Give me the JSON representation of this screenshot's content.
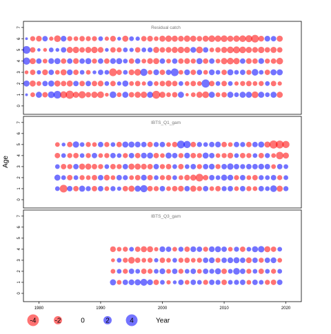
{
  "chart_data": {
    "type": "scatter",
    "subtype": "bubble-residuals",
    "ylabel": "Age",
    "xlabel": "Year",
    "x_ticks": [
      1980,
      1990,
      2000,
      2010,
      2020
    ],
    "xlim": [
      1977.5,
      2022.5
    ],
    "ylim": [
      -0.5,
      7.3
    ],
    "y_ticks": [
      0,
      1,
      2,
      3,
      4,
      5,
      6,
      7
    ],
    "colors": {
      "positive": "#0000ff",
      "negative": "#ff0000",
      "alpha": 0.55
    },
    "legend": {
      "placement": "bottom-left",
      "values": [
        -4,
        -2,
        0,
        2,
        4
      ],
      "labels": [
        "-4",
        "-2",
        "0",
        "2",
        "4"
      ],
      "title": "Year"
    },
    "panels": [
      {
        "title": "Residual catch",
        "years": [
          1978,
          2019
        ],
        "ages": [
          1,
          2,
          3,
          4,
          5,
          6
        ],
        "residuals": {
          "1": [
            0.2,
            -0.6,
            1.0,
            -0.8,
            1.2,
            1.6,
            -1.3,
            -1.8,
            -1.0,
            -1.4,
            -0.8,
            -1.1,
            -1.2,
            -0.4,
            1.2,
            -0.6,
            1.0,
            -0.8,
            -1.0,
            -1.1,
            1.0,
            -1.7,
            -1.0,
            -0.6,
            -0.8,
            1.0,
            -0.3,
            -0.6,
            -1.0,
            -1.2,
            1.0,
            -0.6,
            -0.8,
            1.0,
            0.6,
            1.0,
            1.0,
            -1.2,
            1.0,
            0.6,
            1.0,
            -1.0
          ],
          "2": [
            1.0,
            -1.0,
            -0.6,
            0.8,
            1.0,
            -1.0,
            -0.8,
            -1.0,
            0.8,
            -0.8,
            0.8,
            -0.8,
            -0.9,
            0.6,
            -0.8,
            0.5,
            1.0,
            -0.6,
            -0.8,
            -0.5,
            0.8,
            -0.6,
            -0.8,
            -1.0,
            -0.8,
            0.6,
            -0.6,
            -0.8,
            -0.6,
            1.8,
            -0.8,
            0.6,
            -0.8,
            0.6,
            -0.5,
            -0.7,
            -0.8,
            -0.6,
            -0.7,
            0.6,
            -0.8,
            -0.5
          ],
          "3": [
            -0.4,
            -0.8,
            0.5,
            -0.9,
            0.8,
            -0.6,
            -1.0,
            0.9,
            -0.8,
            0.6,
            -0.6,
            0.4,
            0.8,
            0.6,
            -1.6,
            -0.8,
            0.6,
            -0.9,
            -1.2,
            1.4,
            -0.6,
            0.9,
            -0.8,
            0.8,
            1.6,
            -0.6,
            0.9,
            -0.8,
            0.8,
            -0.6,
            0.9,
            0.6,
            -0.8,
            1.0,
            0.6,
            0.8,
            -0.7,
            1.2,
            0.6,
            -0.8,
            1.0,
            1.0
          ],
          "4": [
            1.4,
            -1.0,
            0.8,
            -0.6,
            0.9,
            1.0,
            -0.8,
            0.8,
            -0.9,
            0.8,
            1.0,
            -0.7,
            0.8,
            -0.8,
            0.9,
            1.0,
            0.6,
            -0.8,
            0.8,
            -0.6,
            -0.9,
            -1.0,
            0.8,
            -0.6,
            0.8,
            -0.8,
            -0.9,
            -0.7,
            1.0,
            -0.8,
            0.8,
            -0.6,
            -1.1,
            -1.2,
            -1.1,
            0.8,
            -0.9,
            -0.8,
            0.9,
            -0.7,
            -0.8,
            -1.2
          ],
          "5": [
            1.6,
            -0.8,
            0.3,
            -0.4,
            0.6,
            0.4,
            0.8,
            -1.0,
            -1.1,
            -0.8,
            -1.0,
            -1.1,
            -0.9,
            0.4,
            -0.8,
            -0.7,
            0.6,
            0.5,
            -0.8,
            0.6,
            0.7,
            -1.0,
            -0.8,
            -0.9,
            -1.0,
            -1.1,
            -1.0,
            0.9,
            -1.2,
            0.8,
            -0.6,
            -0.8,
            -1.0,
            -1.2,
            -1.3,
            -1.2,
            -1.0,
            -0.9,
            -1.1,
            -0.8,
            -1.0,
            -0.8
          ],
          "6": [
            0.2,
            -0.7,
            -0.9,
            0.8,
            -0.5,
            -1.2,
            0.9,
            -0.7,
            -0.6,
            -0.8,
            -0.7,
            -0.7,
            0.6,
            -0.5,
            -0.9,
            0.4,
            -1.0,
            0.6,
            0.5,
            -0.8,
            -0.9,
            -0.6,
            -1.0,
            -1.1,
            -1.0,
            -0.9,
            -1.1,
            -1.0,
            -0.8,
            -1.0,
            -1.2,
            -1.1,
            -1.2,
            -1.0,
            -1.1,
            -1.2,
            -1.3,
            -1.6,
            -0.9,
            0.9,
            0.8,
            -1.0
          ]
        }
      },
      {
        "title": "IBTS_Q1_gam",
        "years": [
          1983,
          2020
        ],
        "ages": [
          1,
          2,
          3,
          4,
          5
        ],
        "residuals": {
          "1": [
            0.6,
            -1.6,
            0.8,
            -0.8,
            1.0,
            0.7,
            -0.8,
            0.8,
            -0.6,
            0.7,
            0.5,
            -0.8,
            -1.0,
            1.0,
            1.4,
            -0.8,
            -0.7,
            0.8,
            -0.6,
            -0.8,
            -0.9,
            0.8,
            -1.0,
            -0.7,
            0.8,
            -0.6,
            -0.8,
            0.7,
            0.8,
            -0.6,
            0.8,
            -0.7,
            -0.6,
            0.8,
            0.6,
            1.2,
            -1.0,
            0.7
          ],
          "2": [
            1.0,
            0.6,
            -0.8,
            0.6,
            -0.7,
            -0.6,
            -0.8,
            0.8,
            -0.9,
            -0.6,
            0.8,
            0.7,
            -0.6,
            -0.8,
            0.9,
            -0.8,
            0.6,
            -0.7,
            -0.8,
            0.6,
            -0.6,
            -0.9,
            -1.0,
            -1.6,
            -0.8,
            0.8,
            0.6,
            1.0,
            0.9,
            -0.7,
            0.8,
            -0.6,
            -0.8,
            0.7,
            0.6,
            0.8,
            -0.7,
            0.6
          ],
          "3": [
            0.6,
            -0.8,
            -0.7,
            0.8,
            -1.0,
            -1.0,
            -0.8,
            -0.7,
            0.6,
            -0.8,
            -0.7,
            0.8,
            -1.0,
            -1.0,
            -0.9,
            -0.8,
            0.8,
            -0.7,
            -0.8,
            0.6,
            -0.8,
            0.6,
            0.8,
            -0.7,
            0.8,
            0.9,
            -0.7,
            0.8,
            1.1,
            0.8,
            0.7,
            0.8,
            0.8,
            0.9,
            0.8,
            -0.6,
            0.8,
            0.6
          ],
          "4": [
            -0.8,
            0.6,
            -0.7,
            -0.8,
            0.6,
            -0.7,
            0.8,
            -0.6,
            -0.7,
            0.8,
            0.6,
            -0.7,
            0.8,
            -0.8,
            0.9,
            1.0,
            -0.8,
            -0.6,
            1.0,
            0.8,
            -0.7,
            0.9,
            -0.8,
            -0.7,
            1.0,
            0.8,
            -0.6,
            -0.7,
            -0.9,
            0.6,
            -0.8,
            -0.7,
            0.6,
            -0.8,
            0.7,
            -0.6,
            -1.5,
            -1.0
          ],
          "5": [
            -0.6,
            0.4,
            -0.8,
            1.1,
            0.6,
            -0.7,
            -0.6,
            0.8,
            -0.7,
            0.6,
            -0.8,
            1.0,
            1.0,
            0.9,
            0.8,
            -0.8,
            0.7,
            0.8,
            -0.6,
            -0.8,
            1.6,
            1.4,
            -0.8,
            0.7,
            0.6,
            0.8,
            0.9,
            -0.8,
            -0.6,
            0.8,
            0.7,
            -0.8,
            0.8,
            1.0,
            -1.0,
            -1.8,
            -1.7,
            -1.4
          ]
        }
      },
      {
        "title": "IBTS_Q3_gam",
        "years": [
          1992,
          2019
        ],
        "ages": [
          1,
          2,
          3,
          4
        ],
        "residuals": {
          "1": [
            1.0,
            -0.6,
            0.8,
            0.9,
            1.0,
            1.3,
            0.9,
            -0.8,
            0.6,
            -0.5,
            0.4,
            0.8,
            -0.6,
            0.8,
            0.6,
            -0.7,
            0.8,
            0.7,
            -0.8,
            0.6,
            0.7,
            0.8,
            -0.6,
            0.8,
            0.6,
            -0.7,
            -0.8,
            0.8
          ],
          "2": [
            -0.6,
            0.6,
            -0.7,
            0.8,
            0.6,
            -0.8,
            -0.7,
            0.6,
            0.9,
            -0.6,
            0.8,
            -0.7,
            0.6,
            0.8,
            -0.6,
            0.8,
            0.7,
            1.0,
            -0.8,
            0.6,
            1.2,
            0.8,
            -0.7,
            0.6,
            -0.8,
            0.6,
            -0.7,
            0.6
          ],
          "3": [
            -0.4,
            0.6,
            -0.7,
            -1.2,
            -0.8,
            -0.6,
            -0.7,
            0.5,
            -0.8,
            -0.6,
            0.6,
            -0.7,
            -0.8,
            -0.6,
            -0.7,
            0.8,
            0.9,
            -0.7,
            0.8,
            0.9,
            1.0,
            0.8,
            -0.9,
            0.8,
            -0.7,
            0.8,
            0.9,
            -0.6
          ],
          "4": [
            -0.9,
            -0.6,
            -0.7,
            0.6,
            -0.8,
            -1.0,
            -1.0,
            -0.5,
            0.9,
            0.8,
            -0.6,
            0.7,
            -0.8,
            0.9,
            0.8,
            -0.7,
            0.9,
            1.0,
            0.8,
            -0.6,
            0.7,
            -0.8,
            0.6,
            1.0,
            1.1,
            -1.0,
            -0.8,
            0.6
          ]
        }
      }
    ]
  }
}
